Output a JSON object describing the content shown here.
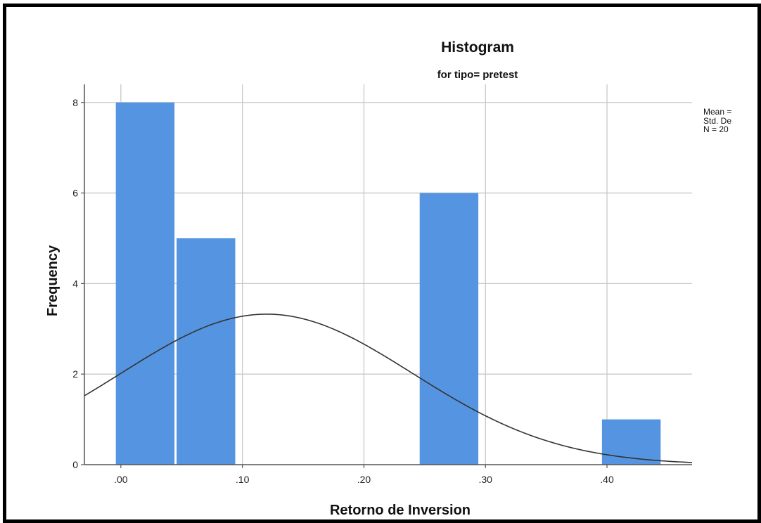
{
  "chart_data": {
    "type": "bar",
    "title": "Histogram",
    "subtitle": "for tipo= pretest",
    "xlabel": "Retorno de Inversion",
    "ylabel": "Frequency",
    "xlim": [
      -0.03,
      0.47
    ],
    "ylim": [
      0,
      8.4
    ],
    "x_ticks": [
      0.0,
      0.1,
      0.2,
      0.3,
      0.4
    ],
    "x_tick_labels": [
      ".00",
      ".10",
      ".20",
      ".30",
      ".40"
    ],
    "y_ticks": [
      0,
      2,
      4,
      6,
      8
    ],
    "y_tick_labels": [
      "0",
      "2",
      "4",
      "6",
      "8"
    ],
    "bins": [
      {
        "x0": -0.005,
        "x1": 0.045,
        "value": 8
      },
      {
        "x0": 0.045,
        "x1": 0.095,
        "value": 5
      },
      {
        "x0": 0.095,
        "x1": 0.145,
        "value": 0
      },
      {
        "x0": 0.145,
        "x1": 0.195,
        "value": 0
      },
      {
        "x0": 0.195,
        "x1": 0.245,
        "value": 0
      },
      {
        "x0": 0.245,
        "x1": 0.295,
        "value": 6
      },
      {
        "x0": 0.295,
        "x1": 0.345,
        "value": 0
      },
      {
        "x0": 0.345,
        "x1": 0.395,
        "value": 0
      },
      {
        "x0": 0.395,
        "x1": 0.445,
        "value": 1
      }
    ],
    "normal_curve": {
      "mean": 0.12,
      "std_dev": 0.12,
      "n": 20,
      "bin_width": 0.05
    },
    "legend": [
      "Mean =",
      "Std. De",
      "N = 20"
    ],
    "grid": true,
    "bar_color": "#5594e0",
    "curve_color": "#333333"
  }
}
